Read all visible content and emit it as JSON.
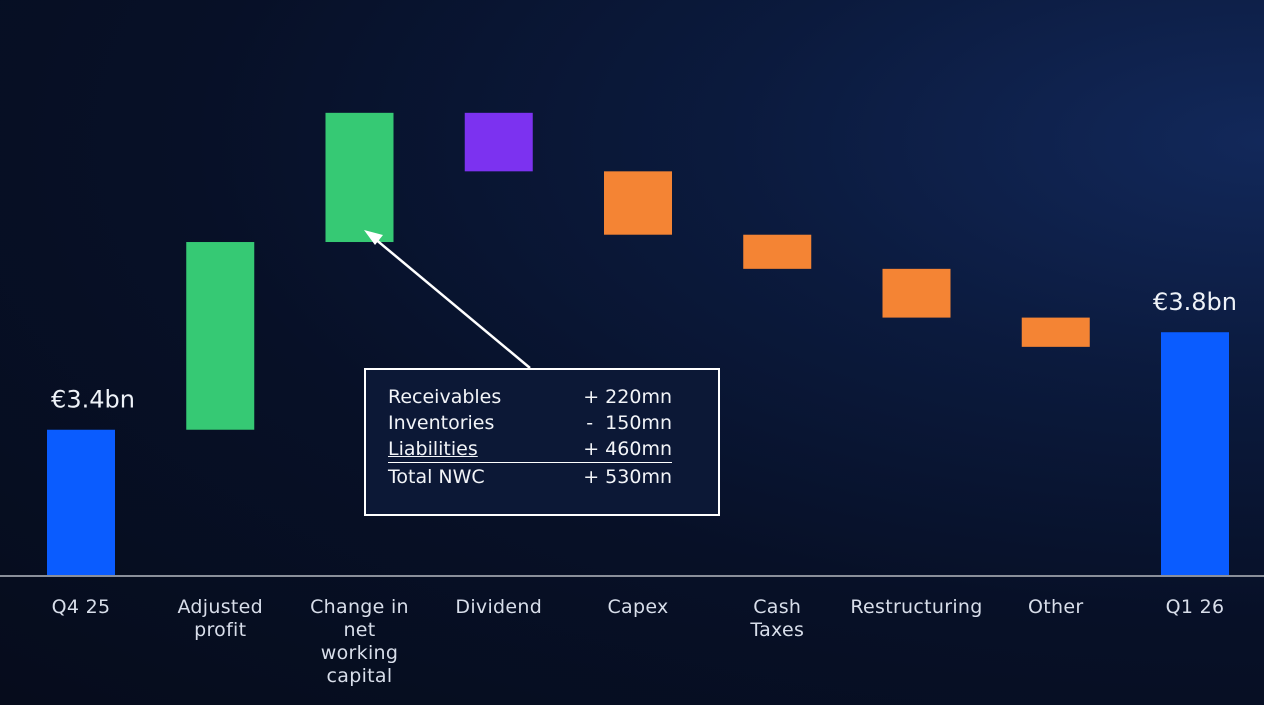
{
  "chart_data": {
    "type": "waterfall",
    "unit": "€bn",
    "steps": [
      {
        "label_lines": [
          "Q4 25"
        ],
        "kind": "total",
        "value": 3.4,
        "value_label": "€3.4bn",
        "color": "#0a5cff"
      },
      {
        "label_lines": [
          "Adjusted",
          "profit"
        ],
        "kind": "increase",
        "value": 0.77,
        "color": "#36c974"
      },
      {
        "label_lines": [
          "Change in",
          "net",
          "working",
          "capital"
        ],
        "kind": "increase",
        "value": 0.53,
        "color": "#36c974"
      },
      {
        "label_lines": [
          "Dividend"
        ],
        "kind": "decrease",
        "value": -0.24,
        "color": "#7c32f0"
      },
      {
        "label_lines": [
          "Capex"
        ],
        "kind": "decrease",
        "value": -0.26,
        "color": "#f48434"
      },
      {
        "label_lines": [
          "Cash",
          "Taxes"
        ],
        "kind": "decrease",
        "value": -0.14,
        "color": "#f48434"
      },
      {
        "label_lines": [
          "Restructuring"
        ],
        "kind": "decrease",
        "value": -0.2,
        "color": "#f48434"
      },
      {
        "label_lines": [
          "Other"
        ],
        "kind": "decrease",
        "value": -0.12,
        "color": "#f48434"
      },
      {
        "label_lines": [
          "Q1 26"
        ],
        "kind": "total",
        "value": 3.8,
        "value_label": "€3.8bn",
        "color": "#0a5cff"
      }
    ],
    "ylim": [
      2.8,
      5.13
    ],
    "callout": {
      "rows": [
        {
          "label": "Receivables",
          "value": "+ 220mn"
        },
        {
          "label": "Inventories",
          "value": "-  150mn"
        },
        {
          "label": "Liabilities",
          "value": "+ 460mn"
        },
        {
          "label": "Total NWC",
          "value": "+ 530mn"
        }
      ]
    }
  }
}
